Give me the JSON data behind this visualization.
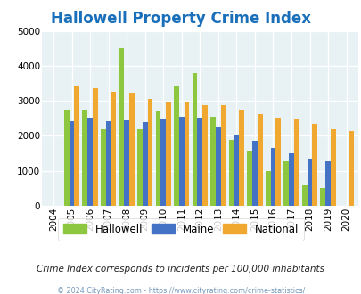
{
  "title_part1": "Hallowell",
  "title_part2": " Property Crime Index",
  "title_color1": "#1a6fba",
  "title_color2": "#1a6fba",
  "years": [
    "2004",
    "2005",
    "2006",
    "2007",
    "2008",
    "2009",
    "2010",
    "2011",
    "2012",
    "2013",
    "2014",
    "2015",
    "2016",
    "2017",
    "2018",
    "2019",
    "2020"
  ],
  "hallowell": [
    0,
    2750,
    2750,
    2200,
    4500,
    2200,
    2700,
    3450,
    3800,
    2550,
    1880,
    1550,
    1000,
    1270,
    580,
    500,
    0
  ],
  "maine": [
    0,
    2430,
    2500,
    2420,
    2450,
    2400,
    2470,
    2540,
    2510,
    2270,
    2010,
    1870,
    1650,
    1510,
    1360,
    1270,
    0
  ],
  "national": [
    0,
    3450,
    3350,
    3270,
    3230,
    3060,
    2970,
    2970,
    2890,
    2880,
    2740,
    2620,
    2490,
    2470,
    2340,
    2200,
    2140
  ],
  "hallowell_color": "#8dc63f",
  "maine_color": "#4472c4",
  "national_color": "#f0a830",
  "bg_color": "#e8f2f5",
  "ylim": [
    0,
    5000
  ],
  "yticks": [
    0,
    1000,
    2000,
    3000,
    4000,
    5000
  ],
  "subtitle": "Crime Index corresponds to incidents per 100,000 inhabitants",
  "footer": "© 2024 CityRating.com - https://www.cityrating.com/crime-statistics/",
  "legend_labels": [
    "Hallowell",
    "Maine",
    "National"
  ]
}
